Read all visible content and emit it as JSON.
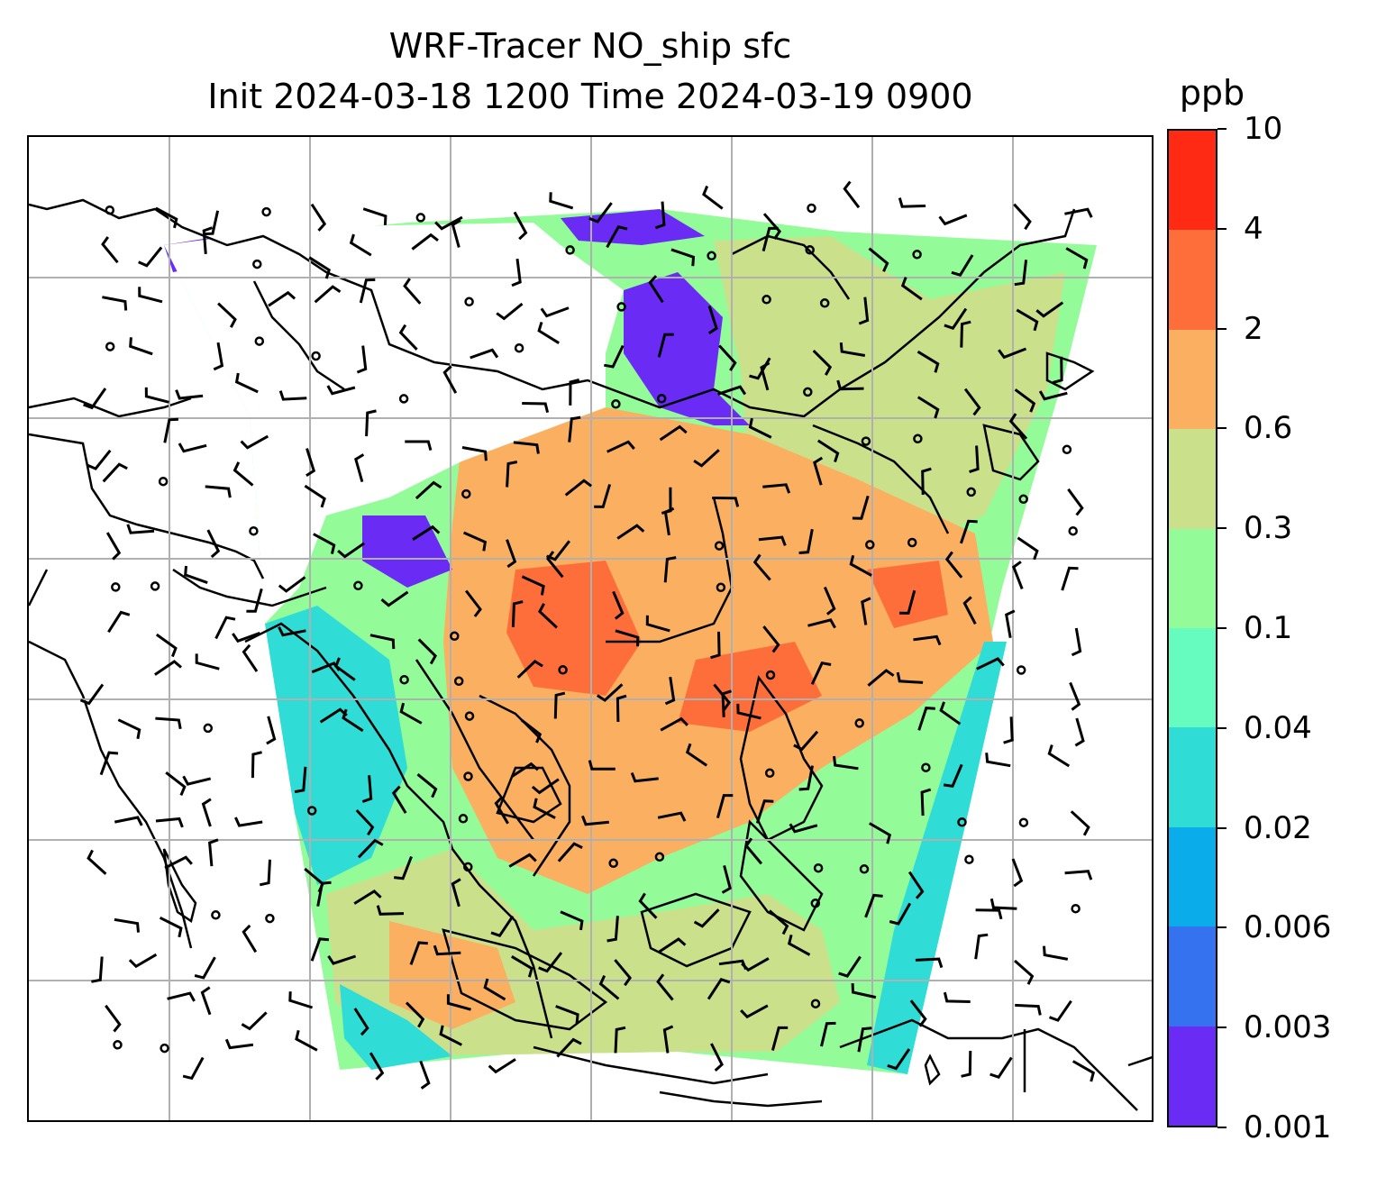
{
  "title": {
    "line1": "WRF-Tracer NO_ship sfc",
    "line2": "Init 2024-03-18 1200 Time 2024-03-19 0900"
  },
  "colorbar": {
    "unit": "ppb",
    "ticks": [
      "0.001",
      "0.003",
      "0.006",
      "0.02",
      "0.04",
      "0.1",
      "0.3",
      "0.6",
      "2",
      "4",
      "10"
    ],
    "colors": [
      "#6a2bf5",
      "#3572f0",
      "#0aadea",
      "#2fdcd6",
      "#66fcc0",
      "#93fc99",
      "#cbe08a",
      "#fbaf61",
      "#fd6e3a",
      "#fe2a14"
    ]
  },
  "map": {
    "gridlines": true,
    "field_colors": {
      "very_low": "#6a2bf5",
      "low": "#2fdcd6",
      "mid_low": "#66fcc0",
      "mid": "#93fc99",
      "mid_high": "#cbe08a",
      "high": "#fbaf61",
      "very_high": "#fd6e3a",
      "peak": "#fe2a14"
    },
    "overlay": "wind-barbs"
  }
}
